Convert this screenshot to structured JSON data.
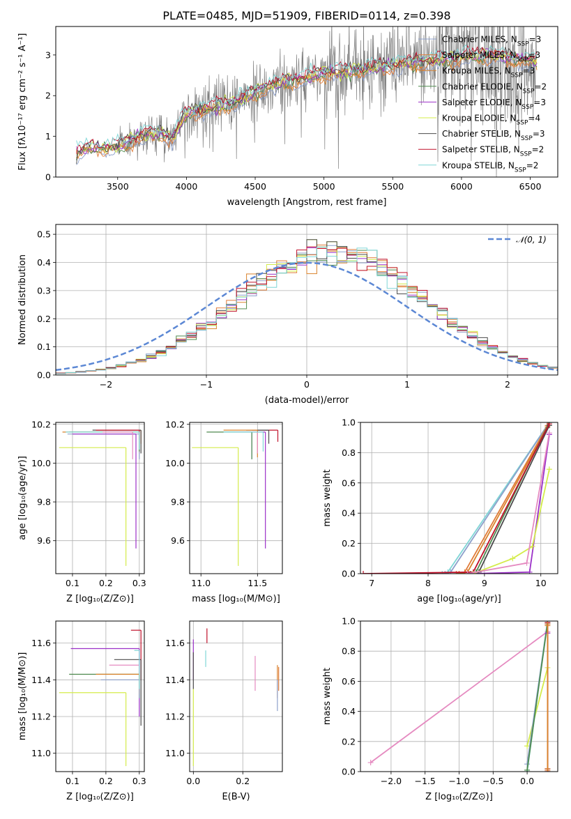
{
  "figure_title": "PLATE=0485, MJD=51909, FIBERID=0114, z=0.398",
  "colors": {
    "chabrier_miles": "#8da0cb",
    "salpeter_miles": "#e07b39",
    "kroupa_miles": "#d9822b",
    "chabrier_elodie": "#4f8a4f",
    "salpeter_elodie": "#9b30c8",
    "kroupa_elodie": "#d4ec4a",
    "chabrier_stelib": "#4a4a4a",
    "salpeter_stelib": "#c0102a",
    "kroupa_stelib": "#7fd6d6",
    "pink": "#e58ac0",
    "data": "#808080",
    "gauss": "#5b87d4"
  },
  "chart_data": [
    {
      "id": "spectrum",
      "type": "line",
      "title": "PLATE=0485, MJD=51909, FIBERID=0114, z=0.398",
      "xlabel": "wavelength [Angstrom, rest frame]",
      "ylabel": "Flux [fλ10⁻¹⁷ erg cm⁻² s⁻¹ A⁻¹]",
      "xlim": [
        3050,
        6700
      ],
      "ylim": [
        0,
        3.7
      ],
      "xticks": [
        "3500",
        "4000",
        "4500",
        "5000",
        "5500",
        "6000",
        "6500"
      ],
      "yticks": [
        "0",
        "1",
        "2",
        "3"
      ],
      "grid": false,
      "legend_position": "top-right",
      "legend": [
        {
          "key": "chabrier_miles",
          "text": "Chabrier MILES, N",
          "sub": "SSP",
          "tail": "=3"
        },
        {
          "key": "salpeter_miles",
          "text": "Salpeter MILES, N",
          "sub": "SSP",
          "tail": "=3"
        },
        {
          "key": "kroupa_miles",
          "text": "Kroupa MILES, N",
          "sub": "SSP",
          "tail": "=3"
        },
        {
          "key": "chabrier_elodie",
          "text": "Chabrier ELODIE, N",
          "sub": "SSP",
          "tail": "=2"
        },
        {
          "key": "salpeter_elodie",
          "text": "Salpeter ELODIE, N",
          "sub": "SSP",
          "tail": "=3"
        },
        {
          "key": "kroupa_elodie",
          "text": "Kroupa ELODIE, N",
          "sub": "SSP",
          "tail": "=4"
        },
        {
          "key": "chabrier_stelib",
          "text": "Chabrier STELIB, N",
          "sub": "SSP",
          "tail": "=3"
        },
        {
          "key": "salpeter_stelib",
          "text": "Salpeter STELIB, N",
          "sub": "SSP",
          "tail": "=2"
        },
        {
          "key": "kroupa_stelib",
          "text": "Kroupa STELIB, N",
          "sub": "SSP",
          "tail": "=2"
        }
      ],
      "continuum": [
        [
          3200,
          0.55
        ],
        [
          3250,
          0.68
        ],
        [
          3300,
          0.72
        ],
        [
          3400,
          0.7
        ],
        [
          3500,
          0.75
        ],
        [
          3600,
          0.9
        ],
        [
          3700,
          1.05
        ],
        [
          3800,
          1.1
        ],
        [
          3900,
          0.95
        ],
        [
          4000,
          1.6
        ],
        [
          4200,
          1.7
        ],
        [
          4400,
          1.9
        ],
        [
          4600,
          2.25
        ],
        [
          4800,
          2.4
        ],
        [
          5000,
          2.55
        ],
        [
          5200,
          2.6
        ],
        [
          5400,
          2.7
        ],
        [
          5600,
          2.8
        ],
        [
          5800,
          2.85
        ],
        [
          6000,
          2.95
        ],
        [
          6200,
          3.0
        ],
        [
          6400,
          2.9
        ],
        [
          6550,
          2.85
        ]
      ]
    },
    {
      "id": "residuals",
      "type": "histogram",
      "xlabel": "(data-model)/error",
      "ylabel": "Normed distribution",
      "xlim": [
        -2.5,
        2.5
      ],
      "ylim": [
        0,
        0.535
      ],
      "xticks": [
        "−2",
        "−1",
        "0",
        "1",
        "2"
      ],
      "yticks": [
        "0.0",
        "0.1",
        "0.2",
        "0.3",
        "0.4",
        "0.5"
      ],
      "grid": true,
      "legend_position": "top-right",
      "legend_label": "𝒩(0, 1)",
      "bin_width": 0.1,
      "gaussian": {
        "mean": 0,
        "sigma": 1
      }
    },
    {
      "id": "age_vs_Z",
      "type": "errorbar",
      "xlabel": "Z [log₁₀(Z/Z⊙)]",
      "ylabel": "age  [log₁₀(age/yr)]",
      "xlim": [
        0.05,
        0.315
      ],
      "ylim": [
        9.43,
        10.21
      ],
      "xticks": [
        "0.1",
        "0.2",
        "0.3"
      ],
      "yticks": [
        "9.6",
        "9.8",
        "10.0",
        "10.2"
      ],
      "grid": true,
      "points": [
        {
          "key": "salpeter_miles",
          "x": 0.305,
          "y": 10.17,
          "xlo": 0.17,
          "ylo": 10.1
        },
        {
          "key": "kroupa_miles",
          "x": 0.3,
          "y": 10.16,
          "xlo": 0.07,
          "ylo": 10.05
        },
        {
          "key": "chabrier_miles",
          "x": 0.3,
          "y": 10.15,
          "xlo": 0.085,
          "ylo": 10.02
        },
        {
          "key": "chabrier_elodie",
          "x": 0.3,
          "y": 10.16,
          "xlo": 0.09,
          "ylo": 10.06
        },
        {
          "key": "salpeter_elodie",
          "x": 0.29,
          "y": 10.15,
          "xlo": 0.1,
          "ylo": 9.56
        },
        {
          "key": "kroupa_elodie",
          "x": 0.26,
          "y": 10.08,
          "xlo": 0.06,
          "ylo": 9.47
        },
        {
          "key": "chabrier_stelib",
          "x": 0.305,
          "y": 10.17,
          "xlo": 0.16,
          "ylo": 10.05
        },
        {
          "key": "salpeter_stelib",
          "x": 0.3,
          "y": 10.17,
          "xlo": 0.17,
          "ylo": 10.12
        },
        {
          "key": "kroupa_stelib",
          "x": 0.3,
          "y": 10.16,
          "xlo": 0.08,
          "ylo": 10.07
        },
        {
          "key": "pink",
          "x": 0.28,
          "y": 10.16,
          "xlo": 0.19,
          "ylo": 10.02
        }
      ]
    },
    {
      "id": "age_vs_mass",
      "type": "errorbar",
      "xlabel": "mass [log₁₀(M/M⊙)]",
      "ylabel": "",
      "xlim": [
        10.9,
        11.72
      ],
      "ylim": [
        9.43,
        10.21
      ],
      "xticks": [
        "11.0",
        "11.5"
      ],
      "yticks": [
        "9.6",
        "9.8",
        "10.0",
        "10.2"
      ],
      "grid": true,
      "points": [
        {
          "key": "salpeter_stelib",
          "x": 11.68,
          "y": 10.17,
          "xlo": 11.45,
          "ylo": 10.11
        },
        {
          "key": "chabrier_stelib",
          "x": 11.6,
          "y": 10.17,
          "xlo": 11.4,
          "ylo": 10.1
        },
        {
          "key": "salpeter_elodie",
          "x": 11.57,
          "y": 10.16,
          "xlo": 11.3,
          "ylo": 9.56
        },
        {
          "key": "kroupa_miles",
          "x": 11.5,
          "y": 10.17,
          "xlo": 11.2,
          "ylo": 10.03
        },
        {
          "key": "chabrier_miles",
          "x": 11.45,
          "y": 10.16,
          "xlo": 11.2,
          "ylo": 10.02
        },
        {
          "key": "chabrier_elodie",
          "x": 11.45,
          "y": 10.16,
          "xlo": 11.05,
          "ylo": 10.02
        },
        {
          "key": "kroupa_elodie",
          "x": 11.33,
          "y": 10.08,
          "xlo": 10.92,
          "ylo": 9.47
        },
        {
          "key": "pink",
          "x": 11.5,
          "y": 10.16,
          "xlo": 11.3,
          "ylo": 10.05
        },
        {
          "key": "kroupa_stelib",
          "x": 11.55,
          "y": 10.16,
          "xlo": 11.2,
          "ylo": 10.06
        }
      ]
    },
    {
      "id": "massweight_vs_age",
      "type": "line",
      "xlabel": "age  [log₁₀(age/yr)]",
      "ylabel": "mass weight",
      "xlim": [
        6.8,
        10.3
      ],
      "ylim": [
        0,
        1
      ],
      "xticks": [
        "7",
        "8",
        "9",
        "10"
      ],
      "yticks": [
        "0.0",
        "0.2",
        "0.4",
        "0.6",
        "0.8",
        "1.0"
      ],
      "grid": true,
      "series": [
        {
          "key": "kroupa_stelib",
          "x": [
            8.25,
            8.35,
            10.15
          ],
          "y": [
            0.0,
            0.01,
            1.0
          ]
        },
        {
          "key": "chabrier_miles",
          "x": [
            8.3,
            8.4,
            10.15
          ],
          "y": [
            0.0,
            0.01,
            1.0
          ]
        },
        {
          "key": "salpeter_miles",
          "x": [
            8.5,
            8.65,
            10.12
          ],
          "y": [
            0.0,
            0.01,
            0.98
          ]
        },
        {
          "key": "kroupa_miles",
          "x": [
            8.55,
            8.7,
            10.12
          ],
          "y": [
            0.0,
            0.01,
            0.97
          ]
        },
        {
          "key": "chabrier_elodie",
          "x": [
            8.75,
            8.85,
            10.15
          ],
          "y": [
            0.0,
            0.01,
            1.0
          ]
        },
        {
          "key": "chabrier_stelib",
          "x": [
            8.8,
            8.9,
            10.15
          ],
          "y": [
            0.0,
            0.01,
            0.98
          ]
        },
        {
          "key": "salpeter_stelib",
          "x": [
            6.85,
            8.8,
            10.15
          ],
          "y": [
            0.0,
            0.01,
            0.99
          ]
        },
        {
          "key": "salpeter_elodie",
          "x": [
            8.8,
            9.8,
            10.15
          ],
          "y": [
            0.0,
            0.01,
            0.92
          ]
        },
        {
          "key": "kroupa_elodie",
          "x": [
            8.8,
            9.5,
            9.85,
            10.15
          ],
          "y": [
            0.0,
            0.1,
            0.18,
            0.69
          ]
        },
        {
          "key": "pink",
          "x": [
            8.7,
            9.75,
            10.15
          ],
          "y": [
            0.0,
            0.07,
            0.93
          ]
        }
      ]
    },
    {
      "id": "mass_vs_Z",
      "type": "errorbar",
      "xlabel": "Z [log₁₀(Z/Z⊙)]",
      "ylabel": "mass [log₁₀(M/M⊙)]",
      "xlim": [
        0.05,
        0.315
      ],
      "ylim": [
        10.9,
        11.72
      ],
      "xticks": [
        "0.1",
        "0.2",
        "0.3"
      ],
      "yticks": [
        "11.0",
        "11.2",
        "11.4",
        "11.6"
      ],
      "grid": true,
      "points": [
        {
          "key": "salpeter_stelib",
          "x": 0.305,
          "y": 11.67,
          "xlo": 0.275,
          "ylo": 11.4
        },
        {
          "key": "salpeter_elodie",
          "x": 0.3,
          "y": 11.57,
          "xlo": 0.095,
          "ylo": 11.2
        },
        {
          "key": "chabrier_stelib",
          "x": 0.305,
          "y": 11.51,
          "xlo": 0.225,
          "ylo": 11.15
        },
        {
          "key": "pink",
          "x": 0.3,
          "y": 11.48,
          "xlo": 0.21,
          "ylo": 11.33
        },
        {
          "key": "chabrier_elodie",
          "x": 0.3,
          "y": 11.43,
          "xlo": 0.09,
          "ylo": 11.3
        },
        {
          "key": "kroupa_miles",
          "x": 0.3,
          "y": 11.43,
          "xlo": 0.17,
          "ylo": 11.32
        },
        {
          "key": "chabrier_miles",
          "x": 0.3,
          "y": 11.4,
          "xlo": 0.185,
          "ylo": 11.3
        },
        {
          "key": "kroupa_elodie",
          "x": 0.26,
          "y": 11.33,
          "xlo": 0.06,
          "ylo": 10.93
        },
        {
          "key": "kroupa_stelib",
          "x": 0.3,
          "y": 11.56,
          "xlo": 0.285,
          "ylo": 11.35
        }
      ]
    },
    {
      "id": "mass_vs_EBV",
      "type": "errorbar",
      "xlabel": "E(B-V)",
      "ylabel": "",
      "xlim": [
        -0.015,
        0.36
      ],
      "ylim": [
        10.9,
        11.72
      ],
      "xticks": [
        "0.0",
        "0.2"
      ],
      "yticks": [
        "11.0",
        "11.2",
        "11.4",
        "11.6"
      ],
      "grid": true,
      "points": [
        {
          "key": "salpeter_elodie",
          "x": 0.0,
          "y": 11.58,
          "ylo": 11.4,
          "yhi": 11.62
        },
        {
          "key": "kroupa_elodie",
          "x": 0.0,
          "y": 11.2,
          "ylo": 10.93,
          "yhi": 11.35
        },
        {
          "key": "chabrier_stelib",
          "x": 0.0,
          "y": 11.5,
          "ylo": 11.35,
          "yhi": 11.55
        },
        {
          "key": "kroupa_stelib",
          "x": 0.05,
          "y": 11.52,
          "ylo": 11.47,
          "yhi": 11.56
        },
        {
          "key": "salpeter_stelib",
          "x": 0.055,
          "y": 11.64,
          "ylo": 11.6,
          "yhi": 11.68
        },
        {
          "key": "pink",
          "x": 0.25,
          "y": 11.45,
          "ylo": 11.34,
          "yhi": 11.53
        },
        {
          "key": "kroupa_miles",
          "x": 0.34,
          "y": 11.4,
          "ylo": 11.3,
          "yhi": 11.48
        },
        {
          "key": "chabrier_miles",
          "x": 0.34,
          "y": 11.32,
          "ylo": 11.23,
          "yhi": 11.4
        },
        {
          "key": "salpeter_miles",
          "x": 0.345,
          "y": 11.42,
          "ylo": 11.34,
          "yhi": 11.47
        }
      ]
    },
    {
      "id": "massweight_vs_Z",
      "type": "line",
      "xlabel": "Z [log₁₀(Z/Z⊙)]",
      "ylabel": "mass weight",
      "xlim": [
        -2.45,
        0.45
      ],
      "ylim": [
        0,
        1
      ],
      "xticks": [
        "−2.0",
        "−1.5",
        "−1.0",
        "−0.5",
        "0.0"
      ],
      "yticks": [
        "0.0",
        "0.2",
        "0.4",
        "0.6",
        "0.8",
        "1.0"
      ],
      "grid": true,
      "series": [
        {
          "key": "pink",
          "x": [
            -2.3,
            0.3
          ],
          "y": [
            0.06,
            0.93
          ]
        },
        {
          "key": "kroupa_elodie",
          "x": [
            0.0,
            0.3
          ],
          "y": [
            0.17,
            0.69
          ]
        },
        {
          "key": "chabrier_miles",
          "x": [
            0.0,
            0.3
          ],
          "y": [
            0.05,
            1.0
          ]
        },
        {
          "key": "kroupa_stelib",
          "x": [
            0.0,
            0.3
          ],
          "y": [
            0.0,
            1.0
          ]
        },
        {
          "key": "chabrier_elodie",
          "x": [
            0.0,
            0.3
          ],
          "y": [
            0.01,
            0.99
          ]
        },
        {
          "key": "salpeter_elodie",
          "x": [
            0.3,
            0.3
          ],
          "y": [
            0.02,
            0.92
          ]
        },
        {
          "key": "chabrier_stelib",
          "x": [
            0.3,
            0.3
          ],
          "y": [
            0.0,
            0.98
          ]
        },
        {
          "key": "salpeter_stelib",
          "x": [
            0.3,
            0.3
          ],
          "y": [
            0.0,
            0.99
          ]
        },
        {
          "key": "salpeter_miles",
          "x": [
            0.3,
            0.3
          ],
          "y": [
            0.01,
            0.98
          ]
        },
        {
          "key": "kroupa_miles",
          "x": [
            0.3,
            0.3
          ],
          "y": [
            0.02,
            0.97
          ]
        }
      ]
    }
  ]
}
